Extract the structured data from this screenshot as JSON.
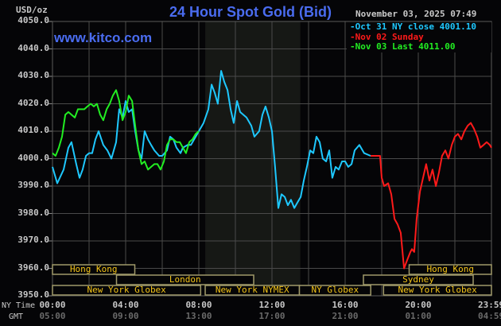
{
  "header": {
    "title": "24 Hour Spot Gold (Bid)",
    "unit": "USD/oz",
    "datetime": "November 03, 2025 07:49",
    "watermark": "www.kitco.com"
  },
  "legend": [
    {
      "label": "Oct 31 NY close 4001.10",
      "color": "#1ec8ff"
    },
    {
      "label": "Nov 02 Sunday",
      "color": "#ff1a1a"
    },
    {
      "label": "Nov 03 Last 4011.00",
      "color": "#22ee22"
    }
  ],
  "axis": {
    "y_ticks": [
      "4050.0",
      "4040.0",
      "4030.0",
      "4020.0",
      "4010.0",
      "4000.0",
      "3990.0",
      "3980.0",
      "3970.0",
      "3960.0",
      "3950.0"
    ],
    "x_row_labels": {
      "ny": "NY Time",
      "gmt": "GMT"
    },
    "x_ticks_ny": [
      "00:00",
      "04:00",
      "08:00",
      "12:00",
      "16:00",
      "20:00",
      "23:59"
    ],
    "x_ticks_gmt": [
      "05:00",
      "09:00",
      "13:00",
      "17:00",
      "21:00",
      "01:00",
      "04:59"
    ]
  },
  "sessions": [
    {
      "label": "Hong Kong",
      "row": 0,
      "start": 0,
      "end": 4.5
    },
    {
      "label": "Hong Kong",
      "row": 0,
      "start": 19.5,
      "end": 24
    },
    {
      "label": "London",
      "row": 1,
      "start": 3.5,
      "end": 11
    },
    {
      "label": "Sydney",
      "row": 1,
      "start": 17,
      "end": 23
    },
    {
      "label": "New York Globex",
      "row": 2,
      "start": 0,
      "end": 8.1
    },
    {
      "label": "New York NYMEX",
      "row": 2,
      "start": 8.35,
      "end": 13.5
    },
    {
      "label": "NY Globex",
      "row": 2,
      "start": 13.5,
      "end": 17.4
    },
    {
      "label": "New York Globex",
      "row": 2,
      "start": 18.1,
      "end": 24
    }
  ],
  "chart_data": {
    "type": "line",
    "title": "24 Hour Spot Gold (Bid)",
    "xlabel": "NY Time",
    "ylabel": "USD/oz",
    "ylim": [
      3950,
      4050
    ],
    "xlim_hours": [
      0,
      24
    ],
    "grid": true,
    "shaded_region_hours": [
      8.35,
      13.55
    ],
    "legend_position": "top-right",
    "series": [
      {
        "name": "Oct 31 NY close 4001.10",
        "color": "#1ec8ff",
        "x_hours": [
          0,
          0.26,
          0.61,
          0.87,
          1.04,
          1.3,
          1.48,
          1.65,
          1.83,
          2.0,
          2.17,
          2.35,
          2.52,
          2.78,
          3.0,
          3.22,
          3.48,
          3.65,
          3.83,
          4.0,
          4.17,
          4.35,
          4.52,
          4.7,
          4.87,
          5.04,
          5.22,
          5.39,
          5.57,
          5.83,
          6.0,
          6.26,
          6.43,
          6.61,
          6.78,
          7.0,
          7.13,
          7.39,
          7.57,
          7.83,
          8.0,
          8.26,
          8.52,
          8.7,
          8.87,
          9.04,
          9.22,
          9.39,
          9.57,
          9.74,
          9.91,
          10.09,
          10.26,
          10.43,
          10.61,
          10.87,
          11.04,
          11.3,
          11.48,
          11.65,
          11.83,
          12.0,
          12.17,
          12.35,
          12.52,
          12.7,
          12.87,
          13.04,
          13.22,
          13.39,
          13.57,
          13.74,
          13.91,
          14.09,
          14.26,
          14.43,
          14.61,
          14.78,
          14.96,
          15.13,
          15.3,
          15.48,
          15.65,
          15.83,
          16.0,
          16.17,
          16.35,
          16.52,
          16.78,
          17.04,
          17.39
        ],
        "values": [
          3997,
          3991,
          3996,
          4004,
          4006,
          3998,
          3993,
          3996,
          4001,
          4002,
          4002,
          4007,
          4010,
          4005,
          4003,
          4000,
          4006,
          4018,
          4015,
          4021,
          4017,
          4018,
          4010,
          4003,
          4000,
          4010,
          4007,
          4005,
          4003,
          4001,
          4001,
          4003,
          4008,
          4007,
          4004,
          4002,
          4004,
          4005,
          4005,
          4008,
          4010,
          4013,
          4018,
          4027,
          4024,
          4020,
          4032,
          4028,
          4025,
          4018,
          4013,
          4021,
          4017,
          4016,
          4015,
          4012,
          4008,
          4010,
          4016,
          4019,
          4015,
          4010,
          3997,
          3982,
          3987,
          3986,
          3983,
          3985,
          3982,
          3984,
          3986,
          3992,
          3997,
          4003,
          4002,
          4008,
          4006,
          4000,
          3999,
          4003,
          3993,
          3997,
          3996,
          3999,
          3999,
          3997,
          3998,
          4003,
          4005,
          4002,
          4001
        ]
      },
      {
        "name": "Nov 02 Sunday",
        "color": "#ff1a1a",
        "x_hours": [
          17.39,
          17.91,
          18.0,
          18.13,
          18.35,
          18.52,
          18.7,
          18.87,
          19.04,
          19.22,
          19.39,
          19.57,
          19.65,
          19.78,
          19.91,
          20.09,
          20.26,
          20.43,
          20.61,
          20.78,
          20.96,
          21.13,
          21.3,
          21.48,
          21.65,
          21.83,
          22.0,
          22.17,
          22.35,
          22.52,
          22.7,
          22.87,
          23.04,
          23.22,
          23.39,
          23.57,
          23.74,
          23.91,
          24.0
        ],
        "values": [
          4001,
          4001,
          3993,
          3990,
          3991,
          3987,
          3978,
          3976,
          3973,
          3960,
          3963,
          3966,
          3967,
          3966,
          3978,
          3988,
          3993,
          3998,
          3992,
          3996,
          3990,
          3995,
          4001,
          4003,
          4000,
          4005,
          4008,
          4009,
          4007,
          4010,
          4012,
          4013,
          4011,
          4008,
          4004,
          4005,
          4006,
          4005,
          4004
        ]
      },
      {
        "name": "Nov 03 Last 4011.00",
        "color": "#22ee22",
        "x_hours": [
          0,
          0.17,
          0.35,
          0.52,
          0.7,
          0.87,
          1.04,
          1.22,
          1.39,
          1.57,
          1.74,
          1.91,
          2.09,
          2.26,
          2.43,
          2.61,
          2.78,
          2.96,
          3.13,
          3.3,
          3.48,
          3.65,
          3.83,
          4.0,
          4.17,
          4.35,
          4.52,
          4.7,
          4.87,
          5.04,
          5.22,
          5.39,
          5.57,
          5.74,
          5.91,
          6.09,
          6.26,
          6.43,
          6.61,
          6.78,
          6.96,
          7.13,
          7.3,
          7.48,
          7.65,
          7.83,
          8.0
        ],
        "values": [
          4002,
          4001,
          4004,
          4008,
          4016,
          4017,
          4016,
          4015,
          4018,
          4018,
          4018,
          4019,
          4020,
          4019,
          4020,
          4016,
          4014,
          4018,
          4020,
          4023,
          4025,
          4021,
          4014,
          4017,
          4023,
          4021,
          4012,
          4003,
          3998,
          3999,
          3996,
          3997,
          3998,
          3998,
          3996,
          3999,
          4005,
          4007,
          4007,
          4006,
          4006,
          4004,
          4002,
          4006,
          4007,
          4009,
          4010
        ]
      }
    ]
  }
}
